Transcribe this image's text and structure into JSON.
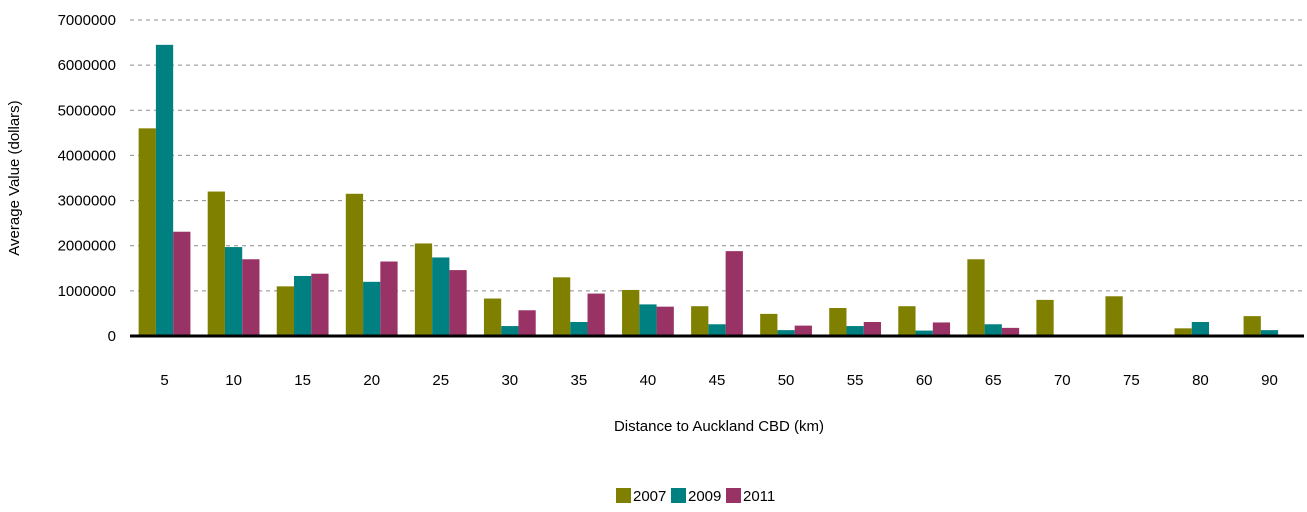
{
  "chart_data": {
    "type": "bar",
    "title": "",
    "xlabel": "Distance to Auckland CBD (km)",
    "ylabel": "Average Value (dollars)",
    "ylim": [
      0,
      7000000
    ],
    "yticks": [
      "0",
      "1000000",
      "2000000",
      "3000000",
      "4000000",
      "5000000",
      "6000000",
      "7000000"
    ],
    "grid": "horizontal dashed",
    "legend_position": "bottom",
    "categories": [
      "5",
      "10",
      "15",
      "20",
      "25",
      "30",
      "35",
      "40",
      "45",
      "50",
      "55",
      "60",
      "65",
      "70",
      "75",
      "80",
      "90"
    ],
    "series": [
      {
        "name": "2007",
        "color": "#808000",
        "values": [
          4600000,
          3200000,
          1100000,
          3150000,
          2050000,
          830000,
          1300000,
          1020000,
          660000,
          490000,
          620000,
          660000,
          1700000,
          800000,
          880000,
          170000,
          440000
        ]
      },
      {
        "name": "2009",
        "color": "#008080",
        "values": [
          6450000,
          1970000,
          1330000,
          1200000,
          1740000,
          220000,
          310000,
          700000,
          260000,
          130000,
          220000,
          120000,
          260000,
          0,
          0,
          310000,
          130000
        ]
      },
      {
        "name": "2011",
        "color": "#993366",
        "values": [
          2310000,
          1700000,
          1380000,
          1650000,
          1460000,
          570000,
          940000,
          650000,
          1880000,
          230000,
          310000,
          300000,
          180000,
          0,
          0,
          0,
          0
        ]
      }
    ]
  }
}
